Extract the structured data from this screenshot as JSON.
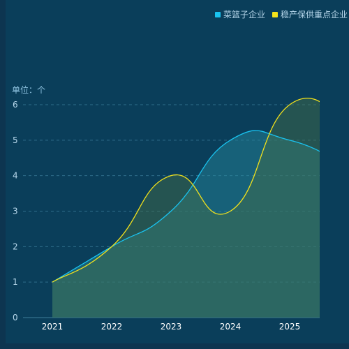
{
  "chart_data": {
    "type": "area",
    "title": "",
    "xlabel": "",
    "ylabel": "单位：个",
    "categories": [
      "2021",
      "2022",
      "2023",
      "2024",
      "2025"
    ],
    "yticks": [
      0,
      1,
      2,
      3,
      4,
      5,
      6
    ],
    "ylim": [
      0,
      6
    ],
    "grid": true,
    "legend_position": "top-right",
    "series": [
      {
        "name": "菜篮子企业",
        "values": [
          1,
          2,
          3,
          5,
          5
        ],
        "color": "#19c3f0"
      },
      {
        "name": "稳产保供重点企业",
        "values": [
          1,
          2,
          4,
          3,
          6
        ],
        "color": "#f3e21b"
      }
    ]
  }
}
